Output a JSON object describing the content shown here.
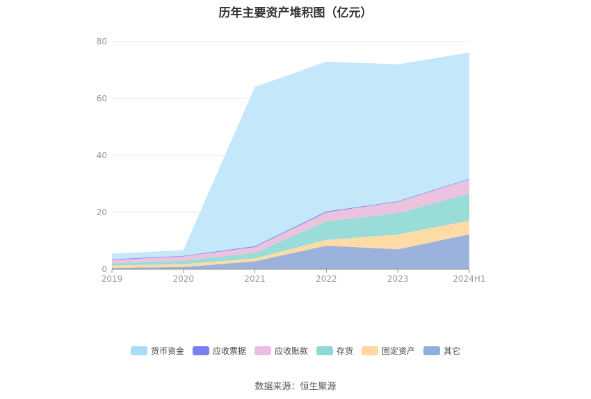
{
  "title": "历年主要资产堆积图（亿元）",
  "source": "数据来源：恒生聚源",
  "chart_data": {
    "type": "area",
    "stacked": true,
    "categories": [
      "2019",
      "2020",
      "2021",
      "2022",
      "2023",
      "2024H1"
    ],
    "ylim": [
      0,
      80
    ],
    "yticks": [
      0,
      20,
      40,
      60,
      80
    ],
    "grid": true,
    "legend_position": "bottom",
    "series": [
      {
        "name": "其它",
        "color": "#9bb3dc",
        "values": [
          0.5,
          0.8,
          2.8,
          8.3,
          7.0,
          12.3
        ]
      },
      {
        "name": "固定资产",
        "color": "#ffdba6",
        "values": [
          0.8,
          1.0,
          1.0,
          2.0,
          5.2,
          4.8
        ]
      },
      {
        "name": "存货",
        "color": "#9adcd8",
        "values": [
          0.8,
          1.2,
          2.0,
          6.5,
          7.5,
          9.5
        ]
      },
      {
        "name": "应收账款",
        "color": "#ecc3df",
        "values": [
          1.2,
          1.5,
          2.0,
          3.2,
          4.0,
          5.0
        ]
      },
      {
        "name": "应收票据",
        "color": "#7b7ff2",
        "values": [
          0.2,
          0.2,
          0.3,
          0.3,
          0.2,
          0.2
        ]
      },
      {
        "name": "货币资金",
        "color": "#c4e7fa",
        "values": [
          2.0,
          2.0,
          56.0,
          52.7,
          48.1,
          44.4
        ]
      }
    ]
  },
  "legend": [
    {
      "name": "货币资金",
      "color": "#a8dcf7"
    },
    {
      "name": "应收票据",
      "color": "#7b7ff2"
    },
    {
      "name": "应收账款",
      "color": "#ecbde0"
    },
    {
      "name": "存货",
      "color": "#8ed9d6"
    },
    {
      "name": "固定资产",
      "color": "#ffd89d"
    },
    {
      "name": "其它",
      "color": "#8eaede"
    }
  ]
}
